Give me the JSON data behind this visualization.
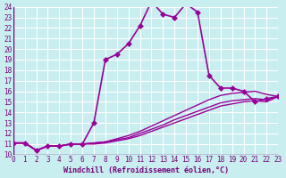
{
  "xlabel": "Windchill (Refroidissement éolien,°C)",
  "ylabel": "",
  "xlim": [
    0,
    23
  ],
  "ylim": [
    10,
    24
  ],
  "xtick_labels": [
    "0",
    "1",
    "2",
    "3",
    "4",
    "5",
    "6",
    "7",
    "8",
    "9",
    "10",
    "11",
    "12",
    "13",
    "14",
    "15",
    "16",
    "17",
    "18",
    "19",
    "20",
    "21",
    "22",
    "23"
  ],
  "ytick_labels": [
    "10",
    "11",
    "12",
    "13",
    "14",
    "15",
    "16",
    "17",
    "18",
    "19",
    "20",
    "21",
    "22",
    "23",
    "24"
  ],
  "background_color": "#c8eef0",
  "grid_color": "#ffffff",
  "line_color": "#990099",
  "series": [
    {
      "x": [
        0,
        1,
        2,
        3,
        4,
        5,
        6,
        7,
        8,
        9,
        10,
        11,
        12,
        13,
        14,
        15,
        16,
        17,
        18,
        19,
        20,
        21,
        22,
        23
      ],
      "y": [
        11.1,
        11.1,
        10.4,
        10.8,
        10.8,
        11.0,
        11.0,
        13.0,
        19.0,
        19.5,
        20.5,
        22.2,
        24.5,
        23.3,
        23.0,
        24.3,
        23.5,
        17.5,
        16.3,
        16.3,
        16.0,
        15.0,
        15.3,
        15.5
      ],
      "marker": "D",
      "markersize": 3,
      "linewidth": 1.2
    },
    {
      "x": [
        0,
        1,
        2,
        3,
        4,
        5,
        6,
        7,
        8,
        9,
        10,
        11,
        12,
        13,
        14,
        15,
        16,
        17,
        18,
        19,
        20,
        21,
        22,
        23
      ],
      "y": [
        11.1,
        11.1,
        10.4,
        10.8,
        10.8,
        11.0,
        11.0,
        11.1,
        11.2,
        11.5,
        11.8,
        12.2,
        12.7,
        13.2,
        13.7,
        14.2,
        14.7,
        15.2,
        15.6,
        15.8,
        15.9,
        16.0,
        15.7,
        15.5
      ],
      "marker": null,
      "markersize": 0,
      "linewidth": 1.0
    },
    {
      "x": [
        0,
        1,
        2,
        3,
        4,
        5,
        6,
        7,
        8,
        9,
        10,
        11,
        12,
        13,
        14,
        15,
        16,
        17,
        18,
        19,
        20,
        21,
        22,
        23
      ],
      "y": [
        11.1,
        11.1,
        10.4,
        10.8,
        10.8,
        11.0,
        11.0,
        11.1,
        11.2,
        11.4,
        11.6,
        12.0,
        12.4,
        12.8,
        13.3,
        13.7,
        14.1,
        14.5,
        14.9,
        15.1,
        15.2,
        15.3,
        15.2,
        15.5
      ],
      "marker": null,
      "markersize": 0,
      "linewidth": 1.0
    },
    {
      "x": [
        0,
        1,
        2,
        3,
        4,
        5,
        6,
        7,
        8,
        9,
        10,
        11,
        12,
        13,
        14,
        15,
        16,
        17,
        18,
        19,
        20,
        21,
        22,
        23
      ],
      "y": [
        11.1,
        11.1,
        10.4,
        10.8,
        10.8,
        11.0,
        11.0,
        11.0,
        11.1,
        11.3,
        11.5,
        11.8,
        12.2,
        12.6,
        13.0,
        13.4,
        13.8,
        14.2,
        14.6,
        14.8,
        15.0,
        15.1,
        15.0,
        15.5
      ],
      "marker": null,
      "markersize": 0,
      "linewidth": 1.0
    }
  ]
}
